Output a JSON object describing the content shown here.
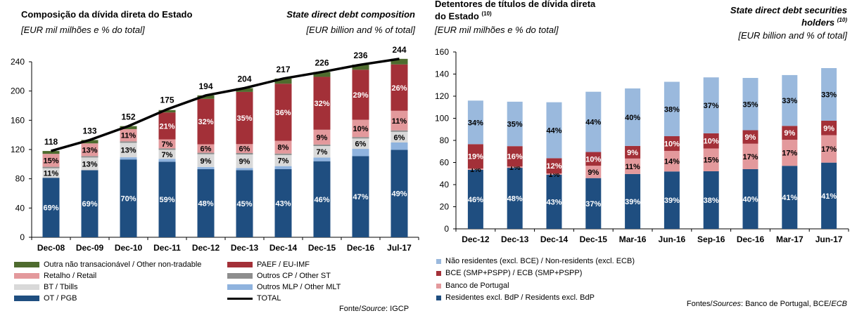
{
  "left": {
    "title_pt": "Composição da dívida direta do Estado",
    "unit_pt": "[EUR mil milhões e % do total]",
    "title_en": "State direct debt composition",
    "unit_en": "[EUR billion and % of total]",
    "source": "Fonte/Source: IGCP",
    "source_prefix": "Fonte/",
    "source_italic": "Source",
    "source_suffix": ": IGCP",
    "legend": [
      {
        "label": "Outra não transacionável / Other non-tradable",
        "color": "#4e6b2e"
      },
      {
        "label": "PAEF / EU-IMF",
        "color": "#a33038"
      },
      {
        "label": "Retalho / Retail",
        "color": "#e3999c"
      },
      {
        "label": "Outros CP / Other ST",
        "color": "#8e8e8e"
      },
      {
        "label": "BT / Tbills",
        "color": "#d9d9d9"
      },
      {
        "label": "Outros MLP / Other MLT",
        "color": "#8fb3de"
      },
      {
        "label": "OT / PGB",
        "color": "#1f4e80"
      },
      {
        "label": "TOTAL",
        "color": "#000000"
      }
    ]
  },
  "right": {
    "title_pt_line1": "Detentores de títulos de dívida direta",
    "title_pt_line2": "do Estado",
    "title_pt_note": "(10)",
    "unit_pt": "[EUR mil milhões e % do total]",
    "title_en_line1": "State direct debt securities",
    "title_en_line2": "holders",
    "title_en_note": "(10)",
    "unit_en": "[EUR billion and % of total]",
    "source_prefix": "Fontes/",
    "source_italic": "Sources",
    "source_middle": ": Banco de Portugal, BCE/",
    "source_italic2": "ECB",
    "legend": [
      {
        "label": "Não residentes (excl. BCE) / Non-residents (excl. ECB)",
        "color": "#9ab9dd"
      },
      {
        "label": "BCE (SMP+PSPP) / ECB (SMP+PSPP)",
        "color": "#a33038"
      },
      {
        "label": "Banco de Portugal",
        "color": "#e3999c"
      },
      {
        "label": "Residentes excl. BdP / Residents excl. BdP",
        "color": "#1f4e80"
      }
    ]
  },
  "chart_data": [
    {
      "type": "bar",
      "stacked": true,
      "title": "Composição da dívida direta do Estado / State direct debt composition",
      "ylabel": "EUR billion",
      "ylim": [
        0,
        240
      ],
      "yticks": [
        0,
        40,
        80,
        120,
        160,
        200,
        240
      ],
      "categories": [
        "Dec-08",
        "Dec-09",
        "Dec-10",
        "Dec-11",
        "Dec-12",
        "Dec-13",
        "Dec-14",
        "Dec-15",
        "Dec-16",
        "Jul-17"
      ],
      "series": [
        {
          "name": "OT / PGB",
          "color": "#1f4e80",
          "values": [
            81.4,
            91.8,
            106.4,
            103.3,
            93.1,
            91.8,
            93.3,
            104.0,
            110.9,
            119.6
          ],
          "labels": [
            "69%",
            "69%",
            "70%",
            "59%",
            "48%",
            "45%",
            "43%",
            "46%",
            "47%",
            "49%"
          ],
          "label_color": "#ffffff"
        },
        {
          "name": "Outros MLP / Other MLT",
          "color": "#8fb3de",
          "values": [
            0,
            0,
            3,
            4,
            3,
            3,
            4,
            5,
            10,
            10
          ],
          "labels": []
        },
        {
          "name": "BT / Tbills",
          "color": "#d9d9d9",
          "values": [
            13.0,
            17.3,
            19.8,
            12.3,
            17.5,
            18.4,
            15.2,
            15.8,
            14.2,
            14.6
          ],
          "labels": [
            "11%",
            "13%",
            "13%",
            "7%",
            "9%",
            "9%",
            "7%",
            "7%",
            "6%",
            "6%"
          ],
          "label_color": "#000000"
        },
        {
          "name": "Outros CP / Other ST",
          "color": "#8e8e8e",
          "values": [
            2,
            2,
            2,
            2,
            2,
            2,
            2,
            2,
            2,
            2
          ],
          "labels": []
        },
        {
          "name": "Retalho / Retail",
          "color": "#e3999c",
          "values": [
            17.7,
            17.3,
            16.7,
            12.3,
            11.6,
            12.2,
            17.4,
            20.3,
            23.6,
            26.8
          ],
          "labels": [
            "15%",
            "13%",
            "11%",
            "7%",
            "6%",
            "6%",
            "8%",
            "9%",
            "10%",
            "11%"
          ],
          "label_color": "#000000"
        },
        {
          "name": "PAEF / EU-IMF",
          "color": "#a33038",
          "values": [
            0,
            0,
            0,
            36.8,
            62.1,
            71.4,
            78.1,
            72.3,
            68.4,
            63.4
          ],
          "labels": [
            "",
            "",
            "",
            "21%",
            "32%",
            "35%",
            "36%",
            "32%",
            "29%",
            "26%"
          ],
          "label_color": "#ffffff"
        },
        {
          "name": "Outra não transacionável / Other non-tradable",
          "color": "#4e6b2e",
          "values": [
            3.9,
            4.6,
            4.1,
            3.3,
            4.7,
            5.2,
            7.0,
            6.6,
            6.9,
            7.6
          ],
          "labels": []
        }
      ],
      "total": {
        "name": "TOTAL",
        "values": [
          118,
          133,
          152,
          175,
          194,
          204,
          217,
          226,
          236,
          244
        ]
      }
    },
    {
      "type": "bar",
      "stacked": true,
      "title": "Detentores de títulos de dívida direta do Estado / State direct debt securities holders",
      "ylabel": "EUR billion",
      "ylim": [
        0,
        160
      ],
      "yticks": [
        0,
        20,
        40,
        60,
        80,
        100,
        120,
        140,
        160
      ],
      "categories": [
        "Dec-12",
        "Dec-13",
        "Dec-14",
        "Dec-15",
        "Mar-16",
        "Jun-16",
        "Sep-16",
        "Dec-16",
        "Mar-17",
        "Jun-17"
      ],
      "series": [
        {
          "name": "Residentes excl. BdP / Residents excl. BdP",
          "color": "#1f4e80",
          "values": [
            53.4,
            55.2,
            49.0,
            45.9,
            49.6,
            51.9,
            52.1,
            54.0,
            57.0,
            59.9
          ],
          "labels": [
            "46%",
            "48%",
            "43%",
            "37%",
            "39%",
            "39%",
            "38%",
            "40%",
            "41%",
            "41%"
          ],
          "label_color": "#ffffff"
        },
        {
          "name": "Banco de Portugal",
          "color": "#e3999c",
          "values": [
            1.2,
            1.2,
            1.1,
            11.2,
            14.0,
            18.6,
            20.6,
            23.0,
            23.6,
            24.8
          ],
          "labels": [
            "1%",
            "1%",
            "1%",
            "9%",
            "11%",
            "14%",
            "15%",
            "17%",
            "17%",
            "17%"
          ],
          "label_color": "#000000"
        },
        {
          "name": "BCE (SMP+PSPP) / ECB (SMP+PSPP)",
          "color": "#a33038",
          "values": [
            22.0,
            18.4,
            13.8,
            12.4,
            11.4,
            13.3,
            13.7,
            12.2,
            12.5,
            13.1
          ],
          "labels": [
            "19%",
            "16%",
            "12%",
            "10%",
            "9%",
            "10%",
            "10%",
            "9%",
            "9%",
            "9%"
          ],
          "label_color": "#ffffff"
        },
        {
          "name": "Não residentes (excl. BCE) / Non-residents (excl. ECB)",
          "color": "#9ab9dd",
          "values": [
            39.4,
            40.2,
            50.6,
            54.5,
            52.0,
            49.2,
            50.6,
            47.3,
            46.0,
            47.6
          ],
          "labels": [
            "34%",
            "35%",
            "44%",
            "44%",
            "40%",
            "38%",
            "37%",
            "35%",
            "33%",
            "33%"
          ],
          "label_color": "#000000"
        }
      ]
    }
  ]
}
